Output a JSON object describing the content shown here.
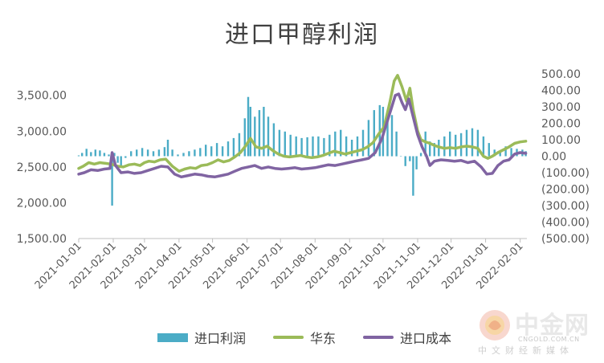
{
  "chart_data": {
    "type": "bar+line",
    "title": "进口甲醇利润",
    "x_dates_start": "2021-01-01",
    "x_tick_labels": [
      "2021-01-01",
      "2021-02-01",
      "2021-03-01",
      "2021-04-01",
      "2021-05-01",
      "2021-06-01",
      "2021-07-01",
      "2021-08-01",
      "2021-09-01",
      "2021-10-01",
      "2021-11-01",
      "2021-12-01",
      "2022-01-01",
      "2022-02-01"
    ],
    "left_axis": {
      "ylim": [
        1500,
        3800
      ],
      "tick_values": [
        1500,
        2000,
        2500,
        3000,
        3500
      ],
      "tick_labels": [
        "1,500.00",
        "2,000.00",
        "2,500.00",
        "3,000.00",
        "3,500.00"
      ]
    },
    "right_axis": {
      "ylim": [
        -500,
        500
      ],
      "tick_values": [
        500,
        400,
        300,
        200,
        100,
        0,
        -100,
        -200,
        -300,
        -400,
        -500
      ],
      "tick_labels": [
        "500.00",
        "400.00",
        "300.00",
        "200.00",
        "100.00",
        "0.00",
        "(100.00)",
        "(200.00)",
        "(300.00)",
        "(400.00)",
        "(500.00)"
      ]
    },
    "legend_position": "bottom",
    "grid": false,
    "series": [
      {
        "name": "进口利润",
        "kind": "bar",
        "axis": "right",
        "color": "#4bacc6",
        "points": [
          [
            "2021-01-01",
            5
          ],
          [
            "2021-01-04",
            20
          ],
          [
            "2021-01-08",
            45
          ],
          [
            "2021-01-12",
            25
          ],
          [
            "2021-01-16",
            40
          ],
          [
            "2021-01-20",
            35
          ],
          [
            "2021-01-24",
            20
          ],
          [
            "2021-01-28",
            10
          ],
          [
            "2021-01-31",
            -300
          ],
          [
            "2021-02-02",
            20
          ],
          [
            "2021-02-05",
            -40
          ],
          [
            "2021-02-08",
            -70
          ],
          [
            "2021-02-12",
            -10
          ],
          [
            "2021-02-17",
            30
          ],
          [
            "2021-02-22",
            40
          ],
          [
            "2021-02-27",
            50
          ],
          [
            "2021-03-04",
            40
          ],
          [
            "2021-03-09",
            30
          ],
          [
            "2021-03-14",
            40
          ],
          [
            "2021-03-19",
            55
          ],
          [
            "2021-03-22",
            100
          ],
          [
            "2021-03-26",
            40
          ],
          [
            "2021-03-31",
            10
          ],
          [
            "2021-04-05",
            20
          ],
          [
            "2021-04-10",
            30
          ],
          [
            "2021-04-15",
            40
          ],
          [
            "2021-04-20",
            50
          ],
          [
            "2021-04-25",
            70
          ],
          [
            "2021-04-30",
            60
          ],
          [
            "2021-05-05",
            80
          ],
          [
            "2021-05-10",
            60
          ],
          [
            "2021-05-15",
            90
          ],
          [
            "2021-05-20",
            110
          ],
          [
            "2021-05-25",
            140
          ],
          [
            "2021-05-30",
            230
          ],
          [
            "2021-06-02",
            360
          ],
          [
            "2021-06-04",
            300
          ],
          [
            "2021-06-08",
            240
          ],
          [
            "2021-06-12",
            280
          ],
          [
            "2021-06-16",
            300
          ],
          [
            "2021-06-20",
            240
          ],
          [
            "2021-06-25",
            200
          ],
          [
            "2021-06-30",
            160
          ],
          [
            "2021-07-05",
            150
          ],
          [
            "2021-07-10",
            130
          ],
          [
            "2021-07-15",
            120
          ],
          [
            "2021-07-20",
            110
          ],
          [
            "2021-07-25",
            115
          ],
          [
            "2021-07-30",
            120
          ],
          [
            "2021-08-04",
            120
          ],
          [
            "2021-08-09",
            110
          ],
          [
            "2021-08-14",
            130
          ],
          [
            "2021-08-19",
            150
          ],
          [
            "2021-08-24",
            160
          ],
          [
            "2021-08-29",
            120
          ],
          [
            "2021-09-03",
            100
          ],
          [
            "2021-09-08",
            120
          ],
          [
            "2021-09-13",
            160
          ],
          [
            "2021-09-18",
            220
          ],
          [
            "2021-09-23",
            280
          ],
          [
            "2021-09-28",
            310
          ],
          [
            "2021-10-01",
            300
          ],
          [
            "2021-10-05",
            270
          ],
          [
            "2021-10-09",
            250
          ],
          [
            "2021-10-13",
            150
          ],
          [
            "2021-10-17",
            0
          ],
          [
            "2021-10-21",
            -60
          ],
          [
            "2021-10-25",
            -30
          ],
          [
            "2021-10-28",
            -240
          ],
          [
            "2021-10-31",
            -80
          ],
          [
            "2021-11-04",
            20
          ],
          [
            "2021-11-08",
            150
          ],
          [
            "2021-11-12",
            90
          ],
          [
            "2021-11-16",
            80
          ],
          [
            "2021-11-20",
            100
          ],
          [
            "2021-11-25",
            120
          ],
          [
            "2021-11-30",
            150
          ],
          [
            "2021-12-05",
            130
          ],
          [
            "2021-12-10",
            140
          ],
          [
            "2021-12-15",
            160
          ],
          [
            "2021-12-20",
            170
          ],
          [
            "2021-12-25",
            160
          ],
          [
            "2021-12-30",
            120
          ],
          [
            "2022-01-04",
            80
          ],
          [
            "2022-01-09",
            40
          ],
          [
            "2022-01-14",
            30
          ],
          [
            "2022-01-19",
            60
          ],
          [
            "2022-01-24",
            50
          ],
          [
            "2022-01-29",
            45
          ],
          [
            "2022-02-03",
            40
          ],
          [
            "2022-02-06",
            30
          ]
        ]
      },
      {
        "name": "华东",
        "kind": "line",
        "axis": "left",
        "color": "#9bbb59",
        "points": [
          [
            "2021-01-01",
            2480
          ],
          [
            "2021-01-05",
            2510
          ],
          [
            "2021-01-10",
            2560
          ],
          [
            "2021-01-15",
            2540
          ],
          [
            "2021-01-20",
            2560
          ],
          [
            "2021-01-25",
            2550
          ],
          [
            "2021-01-30",
            2540
          ],
          [
            "2021-02-05",
            2510
          ],
          [
            "2021-02-10",
            2500
          ],
          [
            "2021-02-15",
            2530
          ],
          [
            "2021-02-20",
            2540
          ],
          [
            "2021-02-25",
            2520
          ],
          [
            "2021-03-01",
            2560
          ],
          [
            "2021-03-05",
            2580
          ],
          [
            "2021-03-10",
            2570
          ],
          [
            "2021-03-15",
            2600
          ],
          [
            "2021-03-20",
            2610
          ],
          [
            "2021-03-26",
            2510
          ],
          [
            "2021-04-01",
            2440
          ],
          [
            "2021-04-06",
            2470
          ],
          [
            "2021-04-11",
            2490
          ],
          [
            "2021-04-16",
            2480
          ],
          [
            "2021-04-21",
            2520
          ],
          [
            "2021-04-26",
            2530
          ],
          [
            "2021-05-01",
            2560
          ],
          [
            "2021-05-06",
            2600
          ],
          [
            "2021-05-11",
            2570
          ],
          [
            "2021-05-16",
            2590
          ],
          [
            "2021-05-21",
            2640
          ],
          [
            "2021-05-26",
            2700
          ],
          [
            "2021-05-31",
            2800
          ],
          [
            "2021-06-04",
            2900
          ],
          [
            "2021-06-09",
            2780
          ],
          [
            "2021-06-14",
            2760
          ],
          [
            "2021-06-19",
            2790
          ],
          [
            "2021-06-24",
            2730
          ],
          [
            "2021-06-29",
            2680
          ],
          [
            "2021-07-04",
            2650
          ],
          [
            "2021-07-09",
            2640
          ],
          [
            "2021-07-14",
            2650
          ],
          [
            "2021-07-19",
            2660
          ],
          [
            "2021-07-24",
            2640
          ],
          [
            "2021-07-29",
            2630
          ],
          [
            "2021-08-03",
            2640
          ],
          [
            "2021-08-08",
            2660
          ],
          [
            "2021-08-13",
            2690
          ],
          [
            "2021-08-18",
            2720
          ],
          [
            "2021-08-23",
            2700
          ],
          [
            "2021-08-28",
            2680
          ],
          [
            "2021-09-02",
            2700
          ],
          [
            "2021-09-07",
            2720
          ],
          [
            "2021-09-12",
            2740
          ],
          [
            "2021-09-17",
            2780
          ],
          [
            "2021-09-22",
            2840
          ],
          [
            "2021-09-27",
            2960
          ],
          [
            "2021-10-02",
            3060
          ],
          [
            "2021-10-07",
            3400
          ],
          [
            "2021-10-11",
            3700
          ],
          [
            "2021-10-14",
            3780
          ],
          [
            "2021-10-18",
            3620
          ],
          [
            "2021-10-22",
            3420
          ],
          [
            "2021-10-25",
            3600
          ],
          [
            "2021-10-28",
            3300
          ],
          [
            "2021-11-01",
            3000
          ],
          [
            "2021-11-04",
            2880
          ],
          [
            "2021-11-08",
            2850
          ],
          [
            "2021-11-12",
            2830
          ],
          [
            "2021-11-16",
            2800
          ],
          [
            "2021-11-20",
            2780
          ],
          [
            "2021-11-25",
            2760
          ],
          [
            "2021-11-30",
            2770
          ],
          [
            "2021-12-05",
            2760
          ],
          [
            "2021-12-10",
            2780
          ],
          [
            "2021-12-15",
            2790
          ],
          [
            "2021-12-20",
            2780
          ],
          [
            "2021-12-25",
            2760
          ],
          [
            "2021-12-30",
            2650
          ],
          [
            "2022-01-03",
            2620
          ],
          [
            "2022-01-07",
            2650
          ],
          [
            "2022-01-12",
            2700
          ],
          [
            "2022-01-17",
            2740
          ],
          [
            "2022-01-22",
            2780
          ],
          [
            "2022-01-27",
            2830
          ],
          [
            "2022-02-01",
            2850
          ],
          [
            "2022-02-06",
            2860
          ]
        ]
      },
      {
        "name": "进口成本",
        "kind": "line",
        "axis": "left",
        "color": "#8064a2",
        "points": [
          [
            "2021-01-01",
            2400
          ],
          [
            "2021-01-06",
            2420
          ],
          [
            "2021-01-12",
            2460
          ],
          [
            "2021-01-18",
            2450
          ],
          [
            "2021-01-24",
            2470
          ],
          [
            "2021-01-29",
            2480
          ],
          [
            "2021-01-31",
            2700
          ],
          [
            "2021-02-03",
            2520
          ],
          [
            "2021-02-08",
            2420
          ],
          [
            "2021-02-14",
            2430
          ],
          [
            "2021-02-20",
            2410
          ],
          [
            "2021-02-26",
            2420
          ],
          [
            "2021-03-04",
            2450
          ],
          [
            "2021-03-10",
            2480
          ],
          [
            "2021-03-16",
            2510
          ],
          [
            "2021-03-22",
            2500
          ],
          [
            "2021-03-28",
            2400
          ],
          [
            "2021-04-03",
            2360
          ],
          [
            "2021-04-09",
            2380
          ],
          [
            "2021-04-15",
            2400
          ],
          [
            "2021-04-21",
            2390
          ],
          [
            "2021-04-27",
            2370
          ],
          [
            "2021-05-03",
            2360
          ],
          [
            "2021-05-09",
            2380
          ],
          [
            "2021-05-15",
            2400
          ],
          [
            "2021-05-21",
            2440
          ],
          [
            "2021-05-27",
            2480
          ],
          [
            "2021-06-02",
            2500
          ],
          [
            "2021-06-08",
            2520
          ],
          [
            "2021-06-14",
            2480
          ],
          [
            "2021-06-20",
            2500
          ],
          [
            "2021-06-26",
            2480
          ],
          [
            "2021-07-02",
            2470
          ],
          [
            "2021-07-08",
            2480
          ],
          [
            "2021-07-14",
            2490
          ],
          [
            "2021-07-20",
            2470
          ],
          [
            "2021-07-26",
            2480
          ],
          [
            "2021-08-01",
            2490
          ],
          [
            "2021-08-07",
            2510
          ],
          [
            "2021-08-13",
            2530
          ],
          [
            "2021-08-19",
            2520
          ],
          [
            "2021-08-25",
            2540
          ],
          [
            "2021-08-31",
            2560
          ],
          [
            "2021-09-06",
            2580
          ],
          [
            "2021-09-12",
            2600
          ],
          [
            "2021-09-18",
            2620
          ],
          [
            "2021-09-24",
            2700
          ],
          [
            "2021-09-30",
            2900
          ],
          [
            "2021-10-04",
            3100
          ],
          [
            "2021-10-08",
            3300
          ],
          [
            "2021-10-12",
            3500
          ],
          [
            "2021-10-15",
            3520
          ],
          [
            "2021-10-18",
            3400
          ],
          [
            "2021-10-21",
            3300
          ],
          [
            "2021-10-24",
            3450
          ],
          [
            "2021-10-28",
            3200
          ],
          [
            "2021-11-01",
            2950
          ],
          [
            "2021-11-05",
            2780
          ],
          [
            "2021-11-09",
            2650
          ],
          [
            "2021-11-12",
            2520
          ],
          [
            "2021-11-16",
            2580
          ],
          [
            "2021-11-22",
            2600
          ],
          [
            "2021-11-28",
            2590
          ],
          [
            "2021-12-04",
            2580
          ],
          [
            "2021-12-10",
            2590
          ],
          [
            "2021-12-16",
            2560
          ],
          [
            "2021-12-22",
            2580
          ],
          [
            "2021-12-28",
            2500
          ],
          [
            "2022-01-02",
            2400
          ],
          [
            "2022-01-07",
            2410
          ],
          [
            "2022-01-12",
            2520
          ],
          [
            "2022-01-17",
            2580
          ],
          [
            "2022-01-22",
            2600
          ],
          [
            "2022-01-27",
            2680
          ],
          [
            "2022-02-01",
            2700
          ],
          [
            "2022-02-06",
            2690
          ]
        ]
      }
    ]
  },
  "legend": {
    "bar_label": "进口利润",
    "line1_label": "华东",
    "line2_label": "进口成本"
  },
  "watermark": {
    "brand": "中金网",
    "domain": "CNGOLD.COM.CN",
    "tagline": "中文财经新媒体"
  },
  "colors": {
    "bar": "#4bacc6",
    "line_east": "#9bbb59",
    "line_cost": "#8064a2",
    "axis_text": "#595959",
    "title": "#404040"
  }
}
